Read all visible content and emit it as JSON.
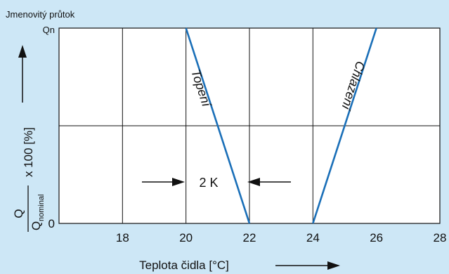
{
  "chart_data": {
    "type": "line",
    "title": "Jmenovitý průtok",
    "xlabel": "Teplota čidla [°C]",
    "ylabel": {
      "numerator": "Q",
      "denominator_main": "Q",
      "denominator_sub": "nominal",
      "suffix": "x 100 [%]"
    },
    "xlim": [
      16,
      28
    ],
    "ylim": [
      0,
      100
    ],
    "x_ticks": [
      "18",
      "20",
      "22",
      "24",
      "26",
      "28"
    ],
    "y_ticks": [
      "0",
      "Qn"
    ],
    "grid": true,
    "series": [
      {
        "name": "Topení",
        "x": [
          20,
          22
        ],
        "y": [
          100,
          0
        ],
        "color": "#1a6fb8"
      },
      {
        "name": "Chlazení",
        "x": [
          24,
          26
        ],
        "y": [
          0,
          100
        ],
        "color": "#1a6fb8"
      }
    ],
    "annotation": {
      "text": "2 K",
      "x_from": 20,
      "x_to": 22
    }
  }
}
